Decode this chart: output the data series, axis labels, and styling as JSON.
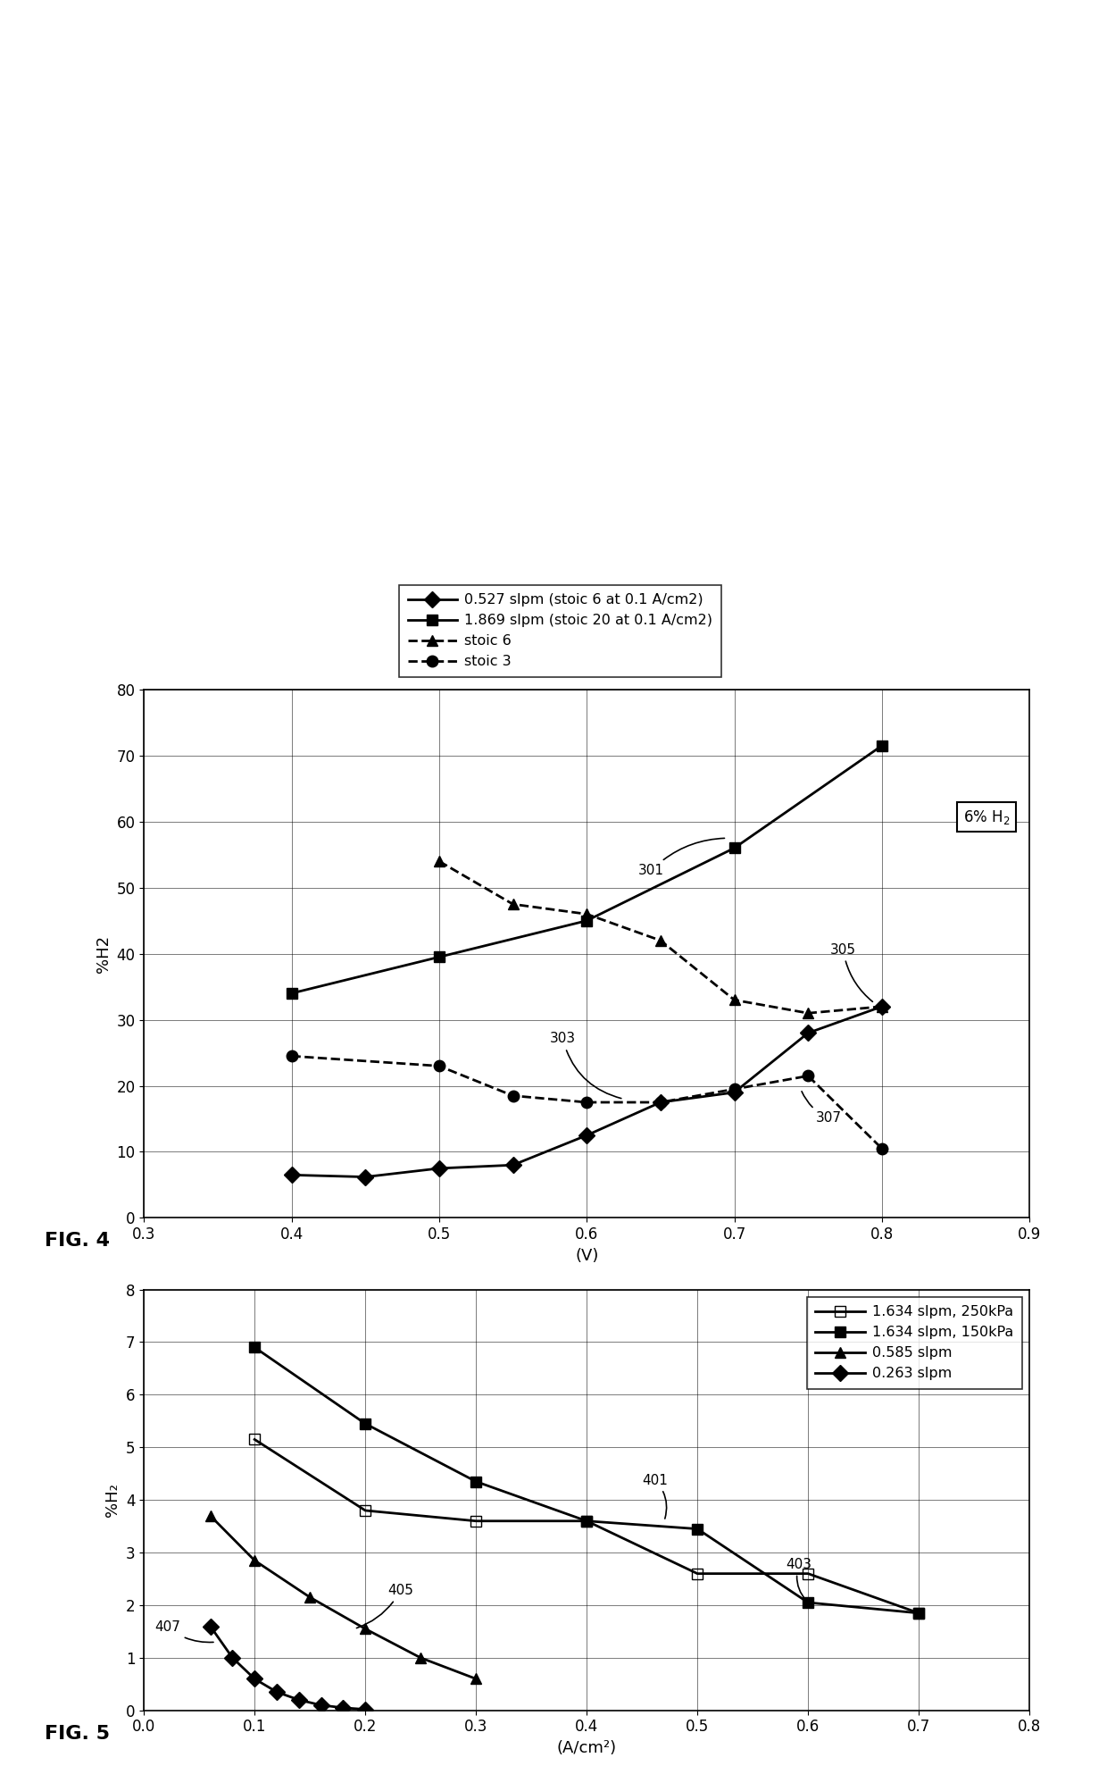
{
  "fig4": {
    "ylabel": "%H2",
    "xlabel": "(V)",
    "xlim": [
      0.3,
      0.9
    ],
    "ylim": [
      0,
      80
    ],
    "xticks": [
      0.3,
      0.4,
      0.5,
      0.6,
      0.7,
      0.8,
      0.9
    ],
    "yticks": [
      0,
      10,
      20,
      30,
      40,
      50,
      60,
      70,
      80
    ],
    "box_label": "6% H₂",
    "series": [
      {
        "label": "0.527 slpm (stoic 6 at 0.1 A/cm2)",
        "x": [
          0.4,
          0.45,
          0.5,
          0.55,
          0.6,
          0.65,
          0.7,
          0.75,
          0.8
        ],
        "y": [
          6.5,
          6.2,
          7.5,
          8.0,
          12.5,
          17.5,
          19.0,
          28.0,
          32.0
        ],
        "linestyle": "-",
        "marker": "D",
        "dashes": []
      },
      {
        "label": "1.869 slpm (stoic 20 at 0.1 A/cm2)",
        "x": [
          0.4,
          0.5,
          0.6,
          0.7,
          0.8
        ],
        "y": [
          34.0,
          39.5,
          45.0,
          56.0,
          71.5
        ],
        "linestyle": "-",
        "marker": "s",
        "dashes": []
      },
      {
        "label": "stoic 6",
        "x": [
          0.5,
          0.55,
          0.6,
          0.65,
          0.7,
          0.75,
          0.8
        ],
        "y": [
          54.0,
          47.5,
          46.0,
          42.0,
          33.0,
          31.0,
          32.0
        ],
        "linestyle": "--",
        "marker": "^",
        "dashes": [
          6,
          3
        ]
      },
      {
        "label": "stoic 3",
        "x": [
          0.4,
          0.5,
          0.55,
          0.6,
          0.65,
          0.7,
          0.75,
          0.8
        ],
        "y": [
          24.5,
          23.0,
          18.5,
          17.5,
          17.5,
          19.5,
          21.5,
          10.5
        ],
        "linestyle": "--",
        "marker": "o",
        "dashes": [
          6,
          3
        ]
      }
    ]
  },
  "fig5": {
    "ylabel": "%H₂",
    "xlabel": "(A/cm²)",
    "xlim": [
      0.0,
      0.8
    ],
    "ylim": [
      0,
      8
    ],
    "xticks": [
      0.0,
      0.1,
      0.2,
      0.3,
      0.4,
      0.5,
      0.6,
      0.7,
      0.8
    ],
    "yticks": [
      0,
      1,
      2,
      3,
      4,
      5,
      6,
      7,
      8
    ],
    "series": [
      {
        "label": "1.634 slpm, 250kPa",
        "x": [
          0.1,
          0.2,
          0.3,
          0.4,
          0.5,
          0.6,
          0.7
        ],
        "y": [
          5.15,
          3.8,
          3.6,
          3.6,
          2.6,
          2.6,
          1.85
        ],
        "linestyle": "-",
        "marker": "s",
        "fillstyle": "none"
      },
      {
        "label": "1.634 slpm, 150kPa",
        "x": [
          0.1,
          0.2,
          0.3,
          0.4,
          0.5,
          0.6,
          0.7
        ],
        "y": [
          6.9,
          5.45,
          4.35,
          3.6,
          3.45,
          2.05,
          1.85
        ],
        "linestyle": "-",
        "marker": "s",
        "fillstyle": "full"
      },
      {
        "label": "0.585 slpm",
        "x": [
          0.06,
          0.1,
          0.15,
          0.2,
          0.25,
          0.3
        ],
        "y": [
          3.7,
          2.85,
          2.15,
          1.55,
          1.0,
          0.6
        ],
        "linestyle": "-",
        "marker": "^",
        "fillstyle": "full"
      },
      {
        "label": "0.263 slpm",
        "x": [
          0.06,
          0.08,
          0.1,
          0.12,
          0.14,
          0.16,
          0.18,
          0.2
        ],
        "y": [
          1.6,
          1.0,
          0.6,
          0.35,
          0.2,
          0.1,
          0.05,
          0.02
        ],
        "linestyle": "-",
        "marker": "D",
        "fillstyle": "full"
      }
    ]
  }
}
